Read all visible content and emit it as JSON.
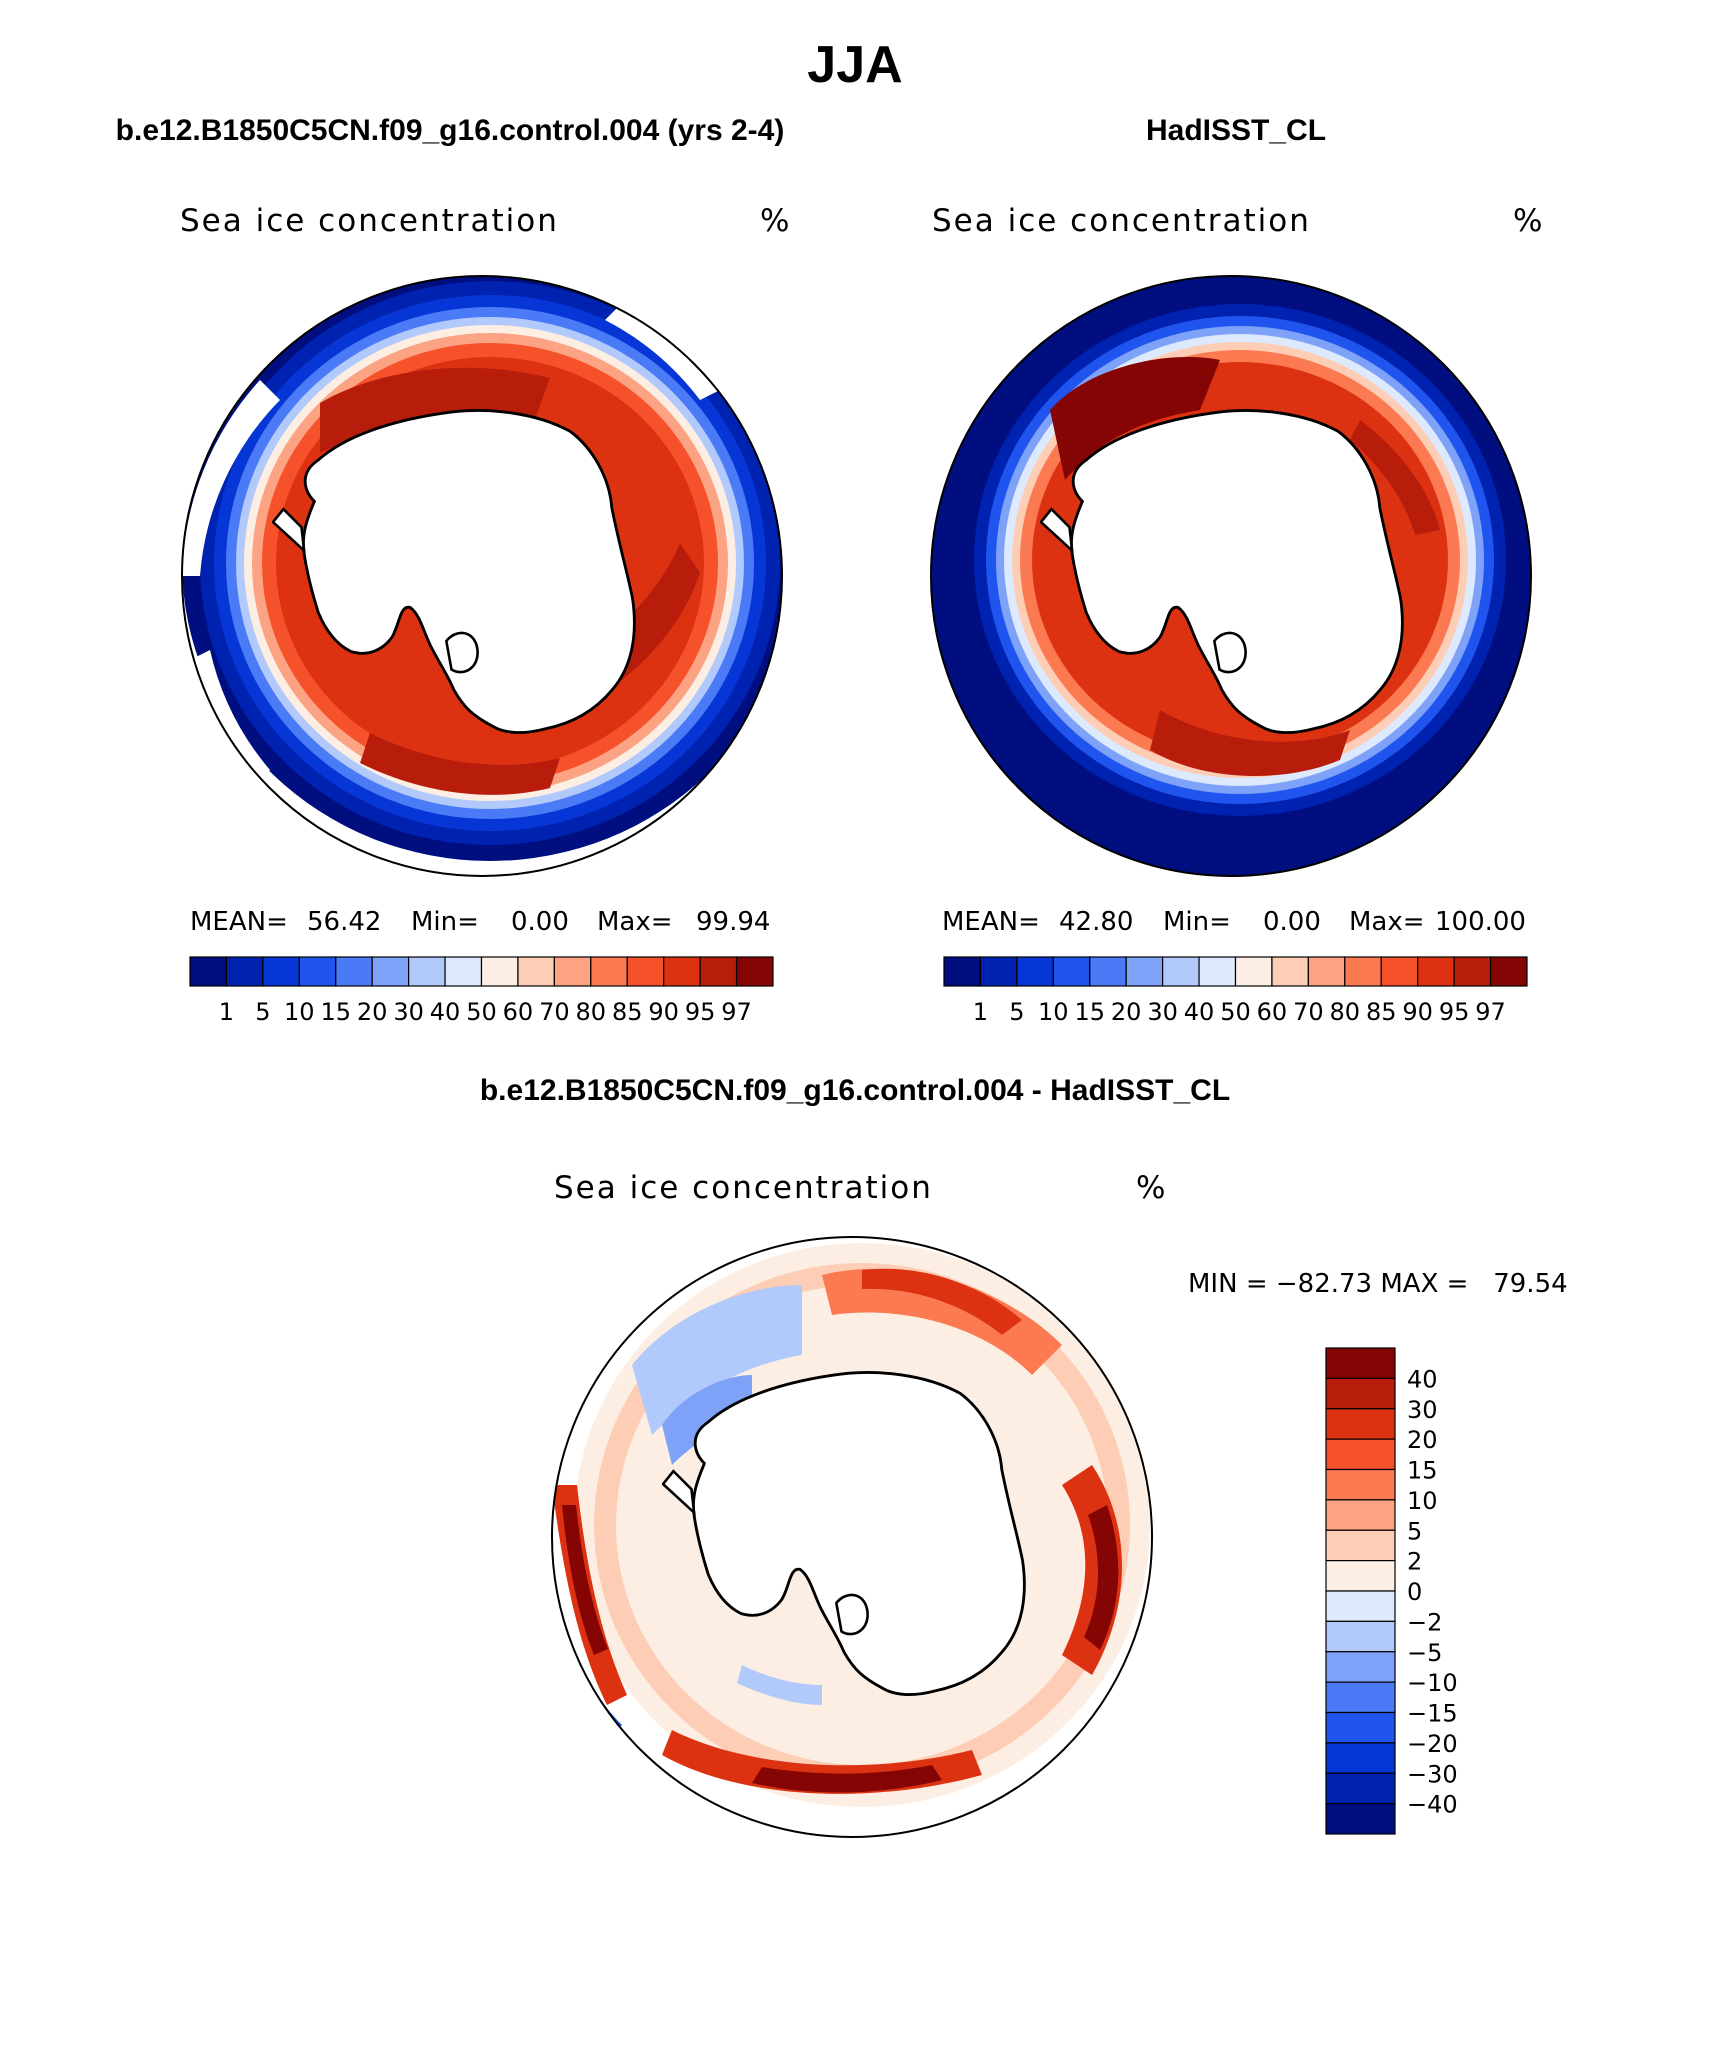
{
  "figure_title": "JJA",
  "colors": {
    "ocean_open": "#ffffff",
    "land": "#ffffff",
    "coast": "#000000",
    "seq_scale": [
      "#000e80",
      "#0022b0",
      "#0637d6",
      "#1f55ee",
      "#4a7af5",
      "#7ea2f7",
      "#b1c9fb",
      "#dde9fd",
      "#fdeee4",
      "#fdcdb6",
      "#fca384",
      "#fb7a52",
      "#f5522c",
      "#dd3212",
      "#b81d0c",
      "#850504"
    ],
    "diff_scale": [
      "#000e80",
      "#0022b0",
      "#0637d6",
      "#1f55ee",
      "#4a7af5",
      "#7ea2f7",
      "#b1c9fb",
      "#dde9fd",
      "#fdeee4",
      "#fdcdb6",
      "#fca384",
      "#fb7a52",
      "#f5522c",
      "#dd3212",
      "#b81d0c",
      "#850504"
    ]
  },
  "panels": {
    "model": {
      "header": "b.e12.B1850C5CN.f09_g16.control.004 (yrs 2-4)",
      "variable": "Sea ice concentration",
      "units": "%",
      "stats": {
        "mean_label": "MEAN=",
        "mean": "56.42",
        "min_label": "Min=",
        "min": "0.00",
        "max_label": "Max=",
        "max": "99.94"
      },
      "mean_value": 56.42,
      "min_value": 0.0,
      "max_value": 99.94
    },
    "obs": {
      "header": "HadISST_CL",
      "variable": "Sea ice concentration",
      "units": "%",
      "stats": {
        "mean_label": "MEAN=",
        "mean": "42.80",
        "min_label": "Min=",
        "min": "0.00",
        "max_label": "Max=",
        "max": "100.00"
      },
      "mean_value": 42.8,
      "min_value": 0.0,
      "max_value": 100.0
    },
    "diff": {
      "header": "b.e12.B1850C5CN.f09_g16.control.004 - HadISST_CL",
      "variable": "Sea ice concentration",
      "units": "%",
      "stats_text": "MIN = −82.73 MAX =   79.54",
      "min_value": -82.73,
      "max_value": 79.54
    }
  },
  "colorbar_levels": [
    "1",
    "5",
    "10",
    "15",
    "20",
    "30",
    "40",
    "50",
    "60",
    "70",
    "80",
    "85",
    "90",
    "95",
    "97"
  ],
  "diff_levels": [
    "40",
    "30",
    "20",
    "15",
    "10",
    "5",
    "2",
    "0",
    "−2",
    "−5",
    "−10",
    "−15",
    "−20",
    "−30",
    "−40"
  ],
  "chart_data": [
    {
      "type": "heatmap",
      "title": "Sea ice concentration",
      "subtitle": "b.e12.B1850C5CN.f09_g16.control.004 (yrs 2-4)",
      "units": "%",
      "projection": "south polar stereographic",
      "contour_levels": [
        1,
        5,
        10,
        15,
        20,
        30,
        40,
        50,
        60,
        70,
        80,
        85,
        90,
        95,
        97
      ],
      "mean": 56.42,
      "min": 0.0,
      "max": 99.94
    },
    {
      "type": "heatmap",
      "title": "Sea ice concentration",
      "subtitle": "HadISST_CL",
      "units": "%",
      "projection": "south polar stereographic",
      "contour_levels": [
        1,
        5,
        10,
        15,
        20,
        30,
        40,
        50,
        60,
        70,
        80,
        85,
        90,
        95,
        97
      ],
      "mean": 42.8,
      "min": 0.0,
      "max": 100.0
    },
    {
      "type": "heatmap",
      "title": "Sea ice concentration",
      "subtitle": "b.e12.B1850C5CN.f09_g16.control.004 - HadISST_CL",
      "units": "%",
      "projection": "south polar stereographic",
      "contour_levels": [
        -40,
        -30,
        -20,
        -15,
        -10,
        -5,
        -2,
        0,
        2,
        5,
        10,
        15,
        20,
        30,
        40
      ],
      "min": -82.73,
      "max": 79.54
    }
  ]
}
